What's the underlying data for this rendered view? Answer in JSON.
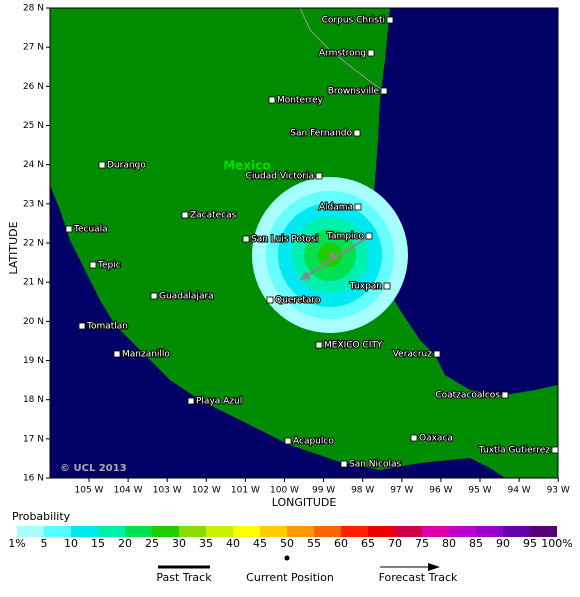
{
  "map": {
    "y_axis_label": "LATITUDE",
    "x_axis_label": "LONGITUDE",
    "lat_ticks": [
      "28 N",
      "27 N",
      "26 N",
      "25 N",
      "24 N",
      "23 N",
      "22 N",
      "21 N",
      "20 N",
      "19 N",
      "18 N",
      "17 N",
      "16 N"
    ],
    "lon_ticks": [
      "105 W",
      "104 W",
      "103 W",
      "102 W",
      "101 W",
      "100 W",
      "99 W",
      "98 W",
      "97 W",
      "96 W",
      "95 W",
      "94 W",
      "93 W"
    ],
    "country_label": "Mexico",
    "credit": "© UCL 2013",
    "cities": [
      "Corpus Christi",
      "Armstrong",
      "Brownsville",
      "Monterrey",
      "San Fernando",
      "Durango",
      "Ciudad Victoria",
      "Aldama",
      "Zacatecas",
      "Tampico",
      "Tecuala",
      "San Luis Potosi",
      "Tepic",
      "Tuxpan",
      "Guadalajara",
      "Queretaro",
      "Tomatlan",
      "MEXICO CITY",
      "Manzanillo",
      "Veracruz",
      "Coatzacoalcos",
      "Playa Azul",
      "Acapulco",
      "Oaxaca",
      "Tuxtla Gutierrez",
      "San Nicolas"
    ]
  },
  "legend": {
    "title": "Probability",
    "labels": [
      "1%",
      "5",
      "10",
      "15",
      "20",
      "25",
      "30",
      "35",
      "40",
      "45",
      "50",
      "55",
      "60",
      "65",
      "70",
      "75",
      "80",
      "85",
      "90",
      "95",
      "100%"
    ],
    "track_items": [
      "Past Track",
      "Current Position",
      "Forecast Track"
    ]
  }
}
